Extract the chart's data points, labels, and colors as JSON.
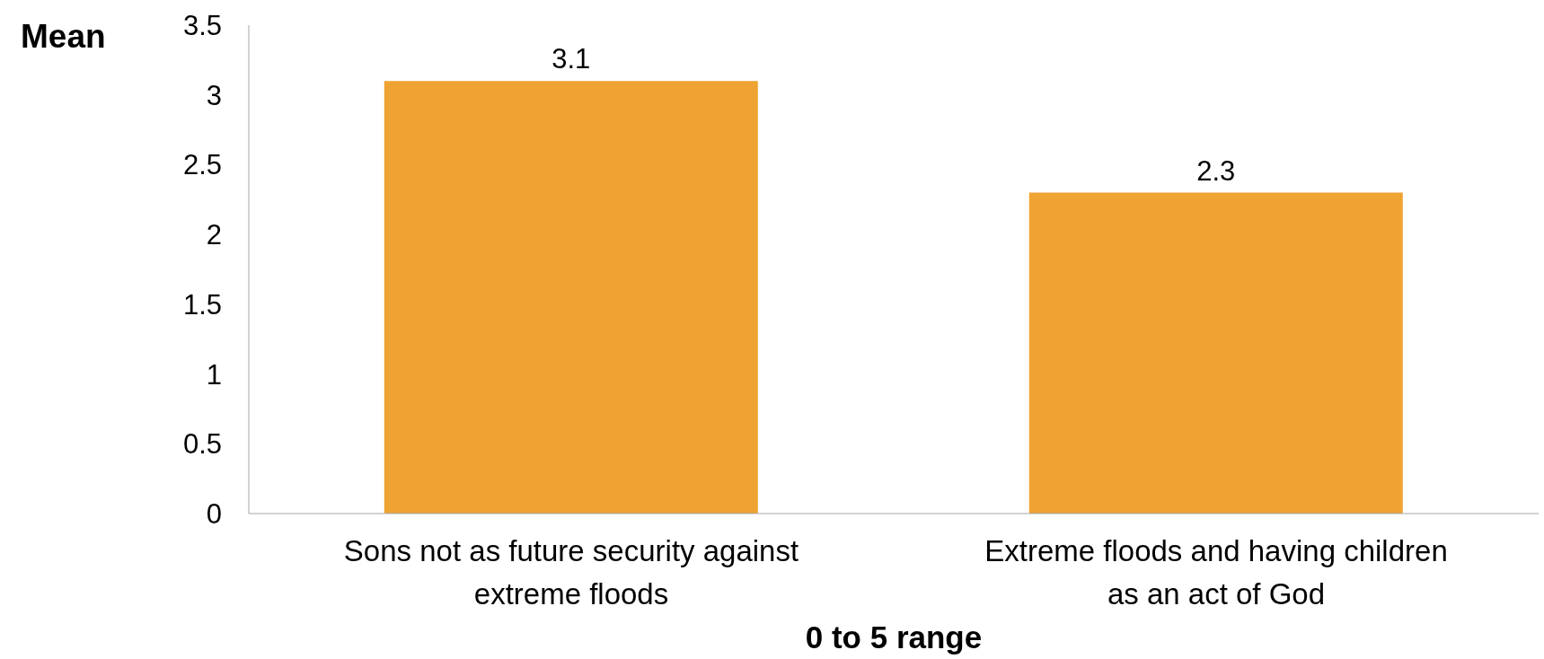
{
  "chart_data": {
    "type": "bar",
    "ylabel": "Mean",
    "xlabel": "0 to 5 range",
    "categories": [
      "Sons not as future security against extreme floods",
      "Extreme floods and having children as an act of God"
    ],
    "values": [
      3.1,
      2.3
    ],
    "color": "#eea332",
    "ylim": [
      0,
      3.5
    ],
    "yticks": [
      0,
      0.5,
      1,
      1.5,
      2,
      2.5,
      3,
      3.5
    ],
    "grid": false,
    "legend": false,
    "data_labels": true
  }
}
